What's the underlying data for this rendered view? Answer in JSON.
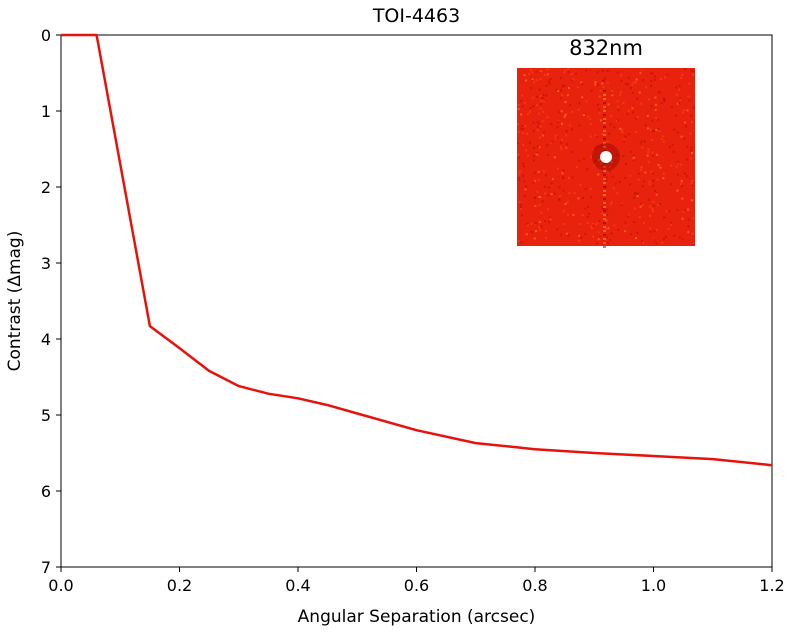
{
  "chart_data": {
    "type": "line",
    "title": "TOI-4463",
    "xlabel": "Angular Separation (arcsec)",
    "ylabel": "Contrast (Δmag)",
    "xlim": [
      0.0,
      1.2
    ],
    "ylim": [
      7,
      0
    ],
    "y_inverted": true,
    "grid": false,
    "xticks": [
      "0.0",
      "0.2",
      "0.4",
      "0.6",
      "0.8",
      "1.0",
      "1.2"
    ],
    "yticks": [
      "0",
      "1",
      "2",
      "3",
      "4",
      "5",
      "6",
      "7"
    ],
    "series": [
      {
        "color": "#e8120c",
        "x": [
          0.0,
          0.06,
          0.15,
          0.2,
          0.25,
          0.3,
          0.35,
          0.4,
          0.45,
          0.5,
          0.6,
          0.7,
          0.8,
          0.9,
          1.0,
          1.1,
          1.2
        ],
        "y": [
          0.0,
          0.0,
          3.83,
          4.12,
          4.42,
          4.62,
          4.72,
          4.78,
          4.87,
          4.98,
          5.2,
          5.37,
          5.45,
          5.5,
          5.54,
          5.58,
          5.66
        ]
      }
    ],
    "inset": {
      "label": "832nm",
      "label_color": "#e8120c",
      "background_color": "#e8220c",
      "placement": "top-right"
    }
  }
}
